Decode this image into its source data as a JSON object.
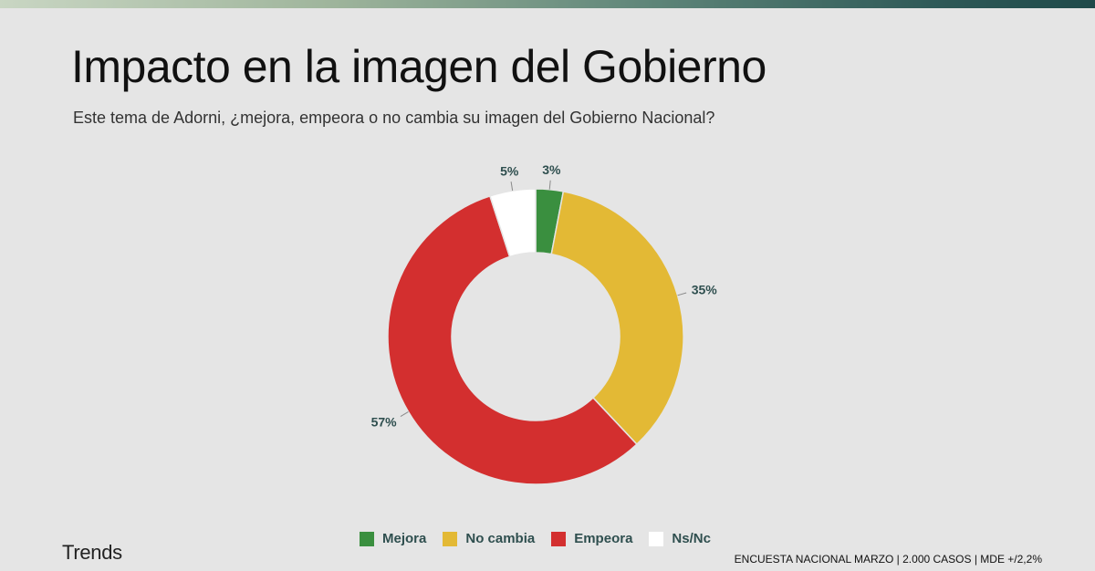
{
  "header": {
    "title": "Impacto en la imagen del Gobierno",
    "subtitle": "Este tema de Adorni, ¿mejora, empeora o no cambia su imagen del Gobierno Nacional?"
  },
  "brand": {
    "name": "Trends"
  },
  "footer": {
    "text": "ENCUESTA NACIONAL MARZO | 2.000 CASOS | MDE +/2,2%"
  },
  "colors": {
    "background": "#e5e5e5",
    "label_text": "#2f4f4f"
  },
  "chart_data": {
    "type": "pie",
    "donut": true,
    "title": "",
    "unit": "%",
    "legend_position": "bottom",
    "categories": [
      "Mejora",
      "No cambia",
      "Empeora",
      "Ns/Nc"
    ],
    "values": [
      3,
      35,
      57,
      5
    ],
    "labels": [
      "3%",
      "35%",
      "57%",
      "5%"
    ],
    "colors": [
      "#3a8f3f",
      "#e3b935",
      "#d32f2f",
      "#ffffff"
    ]
  }
}
